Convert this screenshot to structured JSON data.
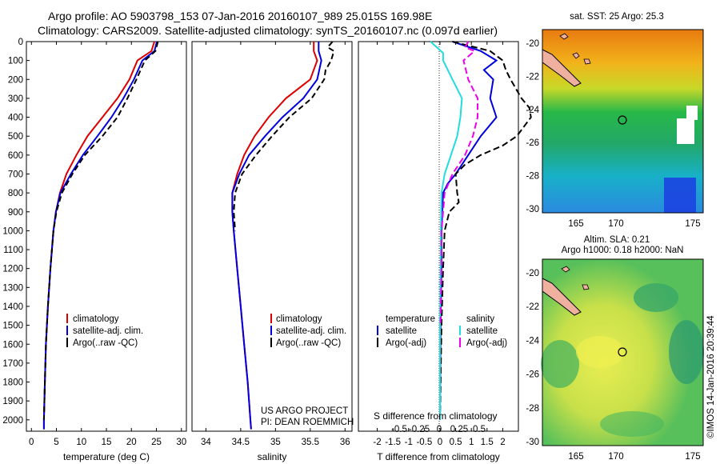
{
  "title_line1": "Argo profile: AO 5903798_153 07-Jan-2016 20160107_989 25.015S 169.98E",
  "title_line2": "Climatology: CARS2009. Satellite-adjusted climatology: synTS_20160107.nc (0.097d earlier)",
  "y_ticks": [
    0,
    100,
    200,
    300,
    400,
    500,
    600,
    700,
    800,
    900,
    1000,
    1100,
    1200,
    1300,
    1400,
    1500,
    1600,
    1700,
    1800,
    1900,
    2000
  ],
  "legend_profile": [
    "climatology",
    "satellite-adj. clim.",
    "Argo(..raw -QC)"
  ],
  "legend_diff": {
    "temperature_head": "temperature",
    "salinity_head": "salinity",
    "t_sat": "satellite",
    "t_argo": "Argo(-adj)",
    "s_sat": "satellite",
    "s_argo": "Argo(-adj)"
  },
  "project_line1": "US ARGO PROJECT",
  "project_line2": "PI: DEAN ROEMMICH",
  "map1_title": "sat. SST: 25 Argo: 25.3",
  "map2_title1": "Altim. SLA: 0.21",
  "map2_title2": "Argo h1000: 0.18 h2000: NaN",
  "map_x_ticks": [
    "165",
    "170",
    "175"
  ],
  "map_y_ticks": [
    "-20",
    "-22",
    "-24",
    "-26",
    "-28",
    "-30"
  ],
  "side_stamp": "©IMOS 14-Jan-2016 20:39:44",
  "colors": {
    "clim": "#dd0000",
    "sat": "#0000dd",
    "argo": "#000000",
    "sat_s": "#22dddd",
    "argo_s": "#ee00ee"
  },
  "chart_data": [
    {
      "type": "line",
      "xlabel": "temperature (deg C)",
      "xlim": [
        -1,
        31
      ],
      "x_ticks": [
        0,
        5,
        10,
        15,
        20,
        25,
        30
      ],
      "ylim": [
        2060,
        0
      ],
      "series": [
        {
          "name": "climatology",
          "y": [
            0,
            50,
            100,
            200,
            300,
            400,
            500,
            600,
            700,
            800,
            900,
            1000,
            1200,
            1400,
            1600,
            1800,
            2000,
            2050
          ],
          "x": [
            24.6,
            24.0,
            21.2,
            19.6,
            17.2,
            14.2,
            11.2,
            9.0,
            7.0,
            5.7,
            4.9,
            4.4,
            3.8,
            3.3,
            2.9,
            2.7,
            2.5,
            2.5
          ]
        },
        {
          "name": "satellite-adj. clim.",
          "y": [
            0,
            50,
            100,
            200,
            300,
            400,
            500,
            600,
            700,
            800,
            900,
            1000,
            1200,
            1400,
            1600,
            1800,
            2000,
            2050
          ],
          "x": [
            25.1,
            24.6,
            22.2,
            20.5,
            18.4,
            16.0,
            13.2,
            10.3,
            7.9,
            5.8,
            4.9,
            4.4,
            3.8,
            3.3,
            2.9,
            2.7,
            2.5,
            2.5
          ]
        },
        {
          "name": "Argo(..raw -QC)",
          "y": [
            0,
            50,
            100,
            200,
            300,
            400,
            500,
            600,
            700,
            800,
            900,
            1000,
            1200,
            1400,
            1600,
            1800,
            2000
          ],
          "x": [
            25.3,
            24.8,
            22.7,
            21.0,
            19.2,
            17.2,
            14.2,
            10.7,
            8.2,
            6.1,
            5.0,
            4.4,
            3.8,
            3.3,
            2.9,
            2.7,
            2.5
          ]
        }
      ]
    },
    {
      "type": "line",
      "xlabel": "salinity",
      "xlim": [
        33.8,
        36.1
      ],
      "x_ticks": [
        34,
        34.5,
        35,
        35.5,
        36
      ],
      "ylim": [
        2060,
        0
      ],
      "series": [
        {
          "name": "climatology",
          "y": [
            0,
            50,
            100,
            200,
            300,
            400,
            500,
            600,
            700,
            800,
            900,
            1000,
            1200,
            1400,
            1600,
            1800,
            2000,
            2050
          ],
          "x": [
            35.55,
            35.55,
            35.6,
            35.5,
            35.15,
            34.9,
            34.7,
            34.55,
            34.45,
            34.38,
            34.38,
            34.4,
            34.45,
            34.5,
            34.55,
            34.6,
            34.64,
            34.65
          ]
        },
        {
          "name": "satellite-adj. clim.",
          "y": [
            0,
            50,
            100,
            200,
            300,
            400,
            500,
            600,
            700,
            800,
            900,
            1000,
            1200,
            1400,
            1600,
            1800,
            2000,
            2050
          ],
          "x": [
            35.62,
            35.62,
            35.66,
            35.6,
            35.4,
            35.1,
            34.85,
            34.62,
            34.48,
            34.38,
            34.38,
            34.4,
            34.45,
            34.5,
            34.55,
            34.6,
            34.64,
            34.65
          ]
        },
        {
          "name": "Argo(..raw -QC)",
          "y": [
            0,
            30,
            50,
            100,
            150,
            200,
            300,
            400,
            500,
            600,
            700,
            800,
            900,
            1000
          ],
          "x": [
            35.82,
            35.75,
            35.84,
            35.8,
            35.72,
            35.7,
            35.52,
            35.2,
            34.95,
            34.72,
            34.52,
            34.42,
            34.4,
            34.42
          ]
        }
      ]
    },
    {
      "type": "line",
      "xlabel": "T difference from climatology",
      "xlabel2": "S difference from climatology",
      "xlim": [
        -2.6,
        2.5
      ],
      "x_ticks": [
        -2,
        -1.5,
        -1,
        -0.5,
        0,
        0.5,
        1,
        1.5,
        2
      ],
      "x_tick_labels": [
        "-2",
        "-1.5",
        "-1",
        "-0.5",
        "0",
        "0.5",
        "1",
        "1.5",
        "2"
      ],
      "s_ticks": [
        -0.5,
        -0.25,
        0,
        0.25,
        0.5
      ],
      "s_tick_labels": [
        "-0.5",
        "-0.25",
        "0",
        "0.25",
        "0.5"
      ],
      "ylim": [
        2060,
        0
      ],
      "series": [
        {
          "name": "temperature satellite",
          "y": [
            0,
            50,
            100,
            150,
            200,
            300,
            400,
            500,
            600,
            700,
            750,
            800,
            1000,
            1200,
            1500,
            2000
          ],
          "x": [
            0.4,
            1.3,
            1.8,
            1.4,
            1.7,
            1.6,
            1.8,
            1.3,
            0.9,
            0.5,
            0.25,
            0.1,
            0.05,
            0.05,
            0.02,
            0.0
          ]
        },
        {
          "name": "temperature Argo(-adj)",
          "y": [
            0,
            50,
            100,
            150,
            200,
            300,
            350,
            400,
            500,
            550,
            600,
            650,
            700,
            800,
            850,
            900,
            1000,
            1200,
            1500,
            2000
          ],
          "x": [
            0.4,
            1.6,
            2.0,
            2.1,
            2.25,
            2.6,
            2.85,
            2.9,
            2.45,
            2.0,
            1.3,
            0.8,
            0.5,
            0.55,
            0.6,
            0.3,
            0.15,
            0.1,
            0.05,
            0.0
          ]
        },
        {
          "name": "salinity satellite",
          "y": [
            0,
            30,
            60,
            100,
            200,
            300,
            400,
            500,
            600,
            700,
            800,
            1000,
            1200,
            1500,
            2000
          ],
          "x": [
            -0.3,
            -0.1,
            0.1,
            0.1,
            0.4,
            0.7,
            0.65,
            0.55,
            0.35,
            0.15,
            0.05,
            0.03,
            0.02,
            0.0,
            0.0
          ]
        },
        {
          "name": "salinity Argo(-adj)",
          "y": [
            0,
            30,
            50,
            100,
            200,
            300,
            400,
            500,
            600,
            700,
            800,
            900,
            1000,
            1200,
            1500
          ],
          "x": [
            0.9,
            0.8,
            1.1,
            0.75,
            0.9,
            1.2,
            1.2,
            1.05,
            0.8,
            0.4,
            0.15,
            0.1,
            0.05,
            0.05,
            0.02
          ]
        }
      ]
    }
  ]
}
